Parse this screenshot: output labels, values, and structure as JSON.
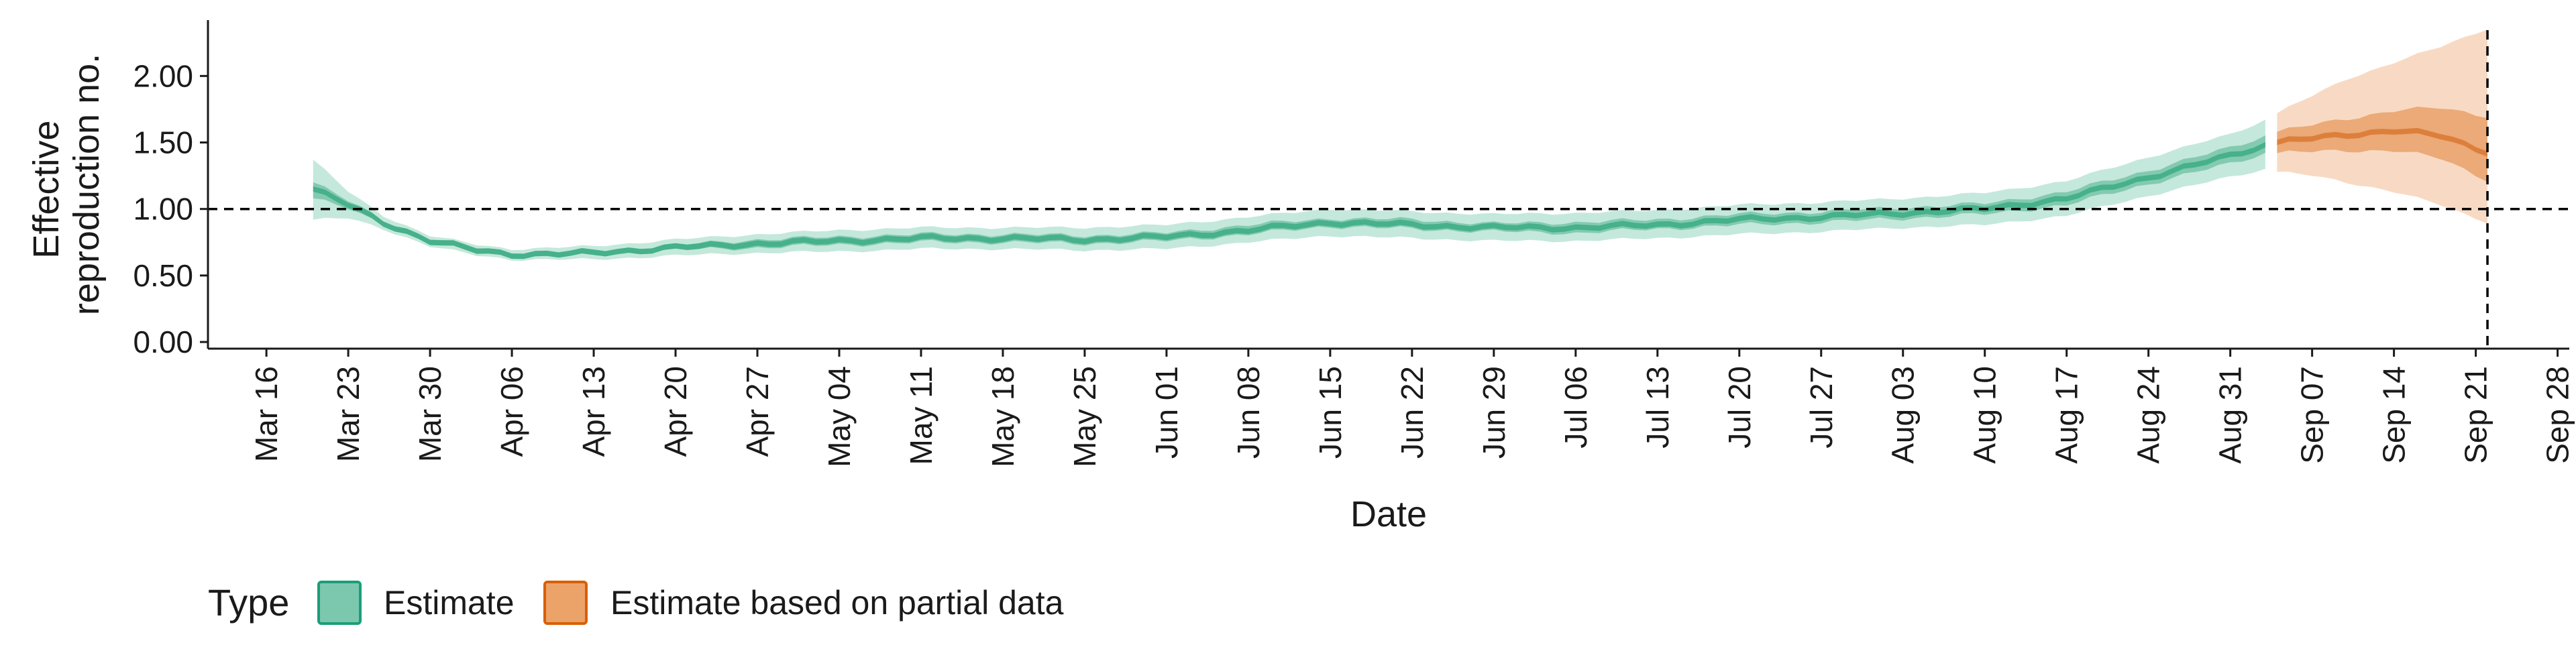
{
  "chart_data": {
    "type": "area",
    "title": "",
    "xlabel": "Date",
    "ylabel": "Effective\nreproduction no.",
    "ylabel_lines": [
      "Effective",
      "reproduction no."
    ],
    "y_ticks": [
      "0.00",
      "0.50",
      "1.00",
      "1.50",
      "2.00"
    ],
    "ylim": [
      -0.05,
      2.42
    ],
    "xlim": [
      "2020-03-11",
      "2020-09-29"
    ],
    "x_ticks": [
      "Mar 16",
      "Mar 23",
      "Mar 30",
      "Apr 06",
      "Apr 13",
      "Apr 20",
      "Apr 27",
      "May 04",
      "May 11",
      "May 18",
      "May 25",
      "Jun 01",
      "Jun 08",
      "Jun 15",
      "Jun 22",
      "Jun 29",
      "Jul 06",
      "Jul 13",
      "Jul 20",
      "Jul 27",
      "Aug 03",
      "Aug 10",
      "Aug 17",
      "Aug 24",
      "Aug 31",
      "Sep 07",
      "Sep 14",
      "Sep 21",
      "Sep 28"
    ],
    "x_tick_dates": [
      "2020-03-16",
      "2020-03-23",
      "2020-03-30",
      "2020-04-06",
      "2020-04-13",
      "2020-04-20",
      "2020-04-27",
      "2020-05-04",
      "2020-05-11",
      "2020-05-18",
      "2020-05-25",
      "2020-06-01",
      "2020-06-08",
      "2020-06-15",
      "2020-06-22",
      "2020-06-29",
      "2020-07-06",
      "2020-07-13",
      "2020-07-20",
      "2020-07-27",
      "2020-08-03",
      "2020-08-10",
      "2020-08-17",
      "2020-08-24",
      "2020-08-31",
      "2020-09-07",
      "2020-09-14",
      "2020-09-21",
      "2020-09-28"
    ],
    "reference_line_y": 1.0,
    "reference_line_x": "2020-09-22",
    "grid": false,
    "legend": {
      "title": "Type",
      "position": "bottom-left",
      "items": [
        {
          "label": "Estimate",
          "fill": "#7bc8ae",
          "stroke": "#1b9e77"
        },
        {
          "label": "Estimate based on partial data",
          "fill": "#eba36a",
          "stroke": "#d95f02"
        }
      ]
    },
    "series": [
      {
        "name": "Estimate",
        "color": "#1b9e77",
        "points": [
          {
            "x": "2020-03-20",
            "median": 1.15,
            "lower90": 0.92,
            "upper90": 1.37,
            "lower50": 1.08,
            "upper50": 1.2
          },
          {
            "x": "2020-03-23",
            "median": 1.03,
            "lower90": 0.93,
            "upper90": 1.13,
            "lower50": 1.0,
            "upper50": 1.06
          },
          {
            "x": "2020-03-26",
            "median": 0.9,
            "lower90": 0.85,
            "upper90": 0.95,
            "lower50": 0.88,
            "upper50": 0.92
          },
          {
            "x": "2020-03-30",
            "median": 0.76,
            "lower90": 0.72,
            "upper90": 0.8,
            "lower50": 0.74,
            "upper50": 0.78
          },
          {
            "x": "2020-04-03",
            "median": 0.69,
            "lower90": 0.65,
            "upper90": 0.73,
            "lower50": 0.67,
            "upper50": 0.71
          },
          {
            "x": "2020-04-06",
            "median": 0.66,
            "lower90": 0.62,
            "upper90": 0.7,
            "lower50": 0.64,
            "upper50": 0.68
          },
          {
            "x": "2020-04-10",
            "median": 0.66,
            "lower90": 0.62,
            "upper90": 0.71,
            "lower50": 0.64,
            "upper50": 0.68
          },
          {
            "x": "2020-04-13",
            "median": 0.67,
            "lower90": 0.62,
            "upper90": 0.72,
            "lower50": 0.65,
            "upper50": 0.69
          },
          {
            "x": "2020-04-20",
            "median": 0.71,
            "lower90": 0.65,
            "upper90": 0.77,
            "lower50": 0.69,
            "upper50": 0.73
          },
          {
            "x": "2020-04-27",
            "median": 0.74,
            "lower90": 0.67,
            "upper90": 0.81,
            "lower50": 0.71,
            "upper50": 0.77
          },
          {
            "x": "2020-05-04",
            "median": 0.76,
            "lower90": 0.68,
            "upper90": 0.84,
            "lower50": 0.73,
            "upper50": 0.79
          },
          {
            "x": "2020-05-11",
            "median": 0.78,
            "lower90": 0.7,
            "upper90": 0.86,
            "lower50": 0.75,
            "upper50": 0.81
          },
          {
            "x": "2020-05-18",
            "median": 0.78,
            "lower90": 0.7,
            "upper90": 0.86,
            "lower50": 0.75,
            "upper50": 0.81
          },
          {
            "x": "2020-05-25",
            "median": 0.77,
            "lower90": 0.69,
            "upper90": 0.86,
            "lower50": 0.74,
            "upper50": 0.8
          },
          {
            "x": "2020-06-01",
            "median": 0.79,
            "lower90": 0.7,
            "upper90": 0.88,
            "lower50": 0.76,
            "upper50": 0.82
          },
          {
            "x": "2020-06-08",
            "median": 0.84,
            "lower90": 0.75,
            "upper90": 0.94,
            "lower50": 0.81,
            "upper50": 0.88
          },
          {
            "x": "2020-06-15",
            "median": 0.9,
            "lower90": 0.8,
            "upper90": 1.0,
            "lower50": 0.87,
            "upper50": 0.93
          },
          {
            "x": "2020-06-22",
            "median": 0.88,
            "lower90": 0.78,
            "upper90": 0.98,
            "lower50": 0.85,
            "upper50": 0.92
          },
          {
            "x": "2020-06-29",
            "median": 0.86,
            "lower90": 0.76,
            "upper90": 0.96,
            "lower50": 0.83,
            "upper50": 0.89
          },
          {
            "x": "2020-07-06",
            "median": 0.86,
            "lower90": 0.76,
            "upper90": 0.97,
            "lower50": 0.82,
            "upper50": 0.9
          },
          {
            "x": "2020-07-13",
            "median": 0.88,
            "lower90": 0.78,
            "upper90": 0.99,
            "lower50": 0.85,
            "upper50": 0.92
          },
          {
            "x": "2020-07-20",
            "median": 0.92,
            "lower90": 0.81,
            "upper90": 1.03,
            "lower50": 0.88,
            "upper50": 0.96
          },
          {
            "x": "2020-07-27",
            "median": 0.94,
            "lower90": 0.83,
            "upper90": 1.05,
            "lower50": 0.9,
            "upper50": 0.98
          },
          {
            "x": "2020-08-03",
            "median": 0.97,
            "lower90": 0.86,
            "upper90": 1.08,
            "lower50": 0.93,
            "upper50": 1.01
          },
          {
            "x": "2020-08-10",
            "median": 1.0,
            "lower90": 0.88,
            "upper90": 1.12,
            "lower50": 0.96,
            "upper50": 1.04
          },
          {
            "x": "2020-08-17",
            "median": 1.08,
            "lower90": 0.95,
            "upper90": 1.21,
            "lower50": 1.03,
            "upper50": 1.13
          },
          {
            "x": "2020-08-24",
            "median": 1.24,
            "lower90": 1.1,
            "upper90": 1.39,
            "lower50": 1.19,
            "upper50": 1.29
          },
          {
            "x": "2020-08-31",
            "median": 1.4,
            "lower90": 1.24,
            "upper90": 1.56,
            "lower50": 1.34,
            "upper50": 1.46
          },
          {
            "x": "2020-09-03",
            "median": 1.48,
            "lower90": 1.3,
            "upper90": 1.67,
            "lower50": 1.42,
            "upper50": 1.55
          }
        ]
      },
      {
        "name": "Estimate based on partial data",
        "color": "#d95f02",
        "points": [
          {
            "x": "2020-09-04",
            "median": 1.5,
            "lower90": 1.28,
            "upper90": 1.72,
            "lower50": 1.42,
            "upper50": 1.58
          },
          {
            "x": "2020-09-07",
            "median": 1.53,
            "lower90": 1.25,
            "upper90": 1.85,
            "lower50": 1.43,
            "upper50": 1.63
          },
          {
            "x": "2020-09-10",
            "median": 1.56,
            "lower90": 1.2,
            "upper90": 1.98,
            "lower50": 1.44,
            "upper50": 1.68
          },
          {
            "x": "2020-09-14",
            "median": 1.59,
            "lower90": 1.13,
            "upper90": 2.1,
            "lower50": 1.44,
            "upper50": 1.74
          },
          {
            "x": "2020-09-18",
            "median": 1.55,
            "lower90": 1.03,
            "upper90": 2.22,
            "lower50": 1.38,
            "upper50": 1.76
          },
          {
            "x": "2020-09-22",
            "median": 1.43,
            "lower90": 0.9,
            "upper90": 2.36,
            "lower50": 1.22,
            "upper50": 1.7
          }
        ]
      }
    ]
  }
}
